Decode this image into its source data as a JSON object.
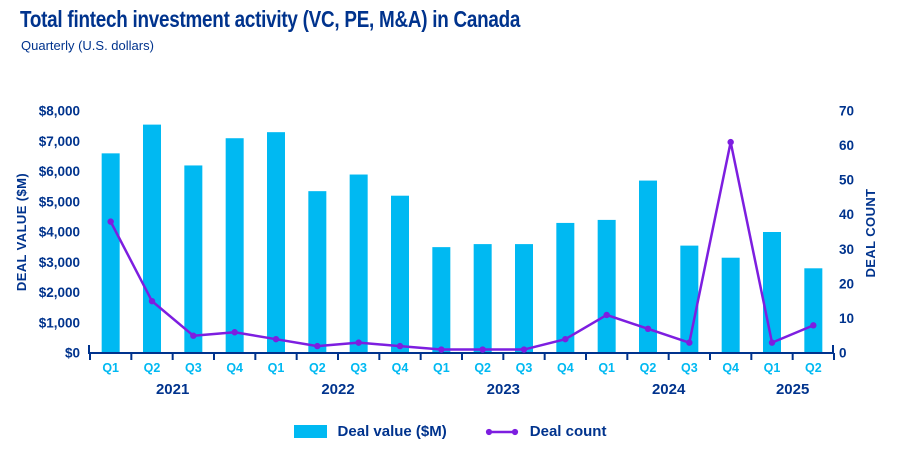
{
  "header": {
    "title": "Total fintech investment activity (VC, PE, M&A) in Canada",
    "subtitle": "Quarterly (U.S. dollars)"
  },
  "colors": {
    "navy": "#00338D",
    "cyan": "#00B9F2",
    "purple": "#7D1EE0"
  },
  "chart_data": {
    "type": "bar",
    "title": "Total fintech investment activity (VC, PE, M&A) in Canada",
    "subtitle": "Quarterly (U.S. dollars)",
    "categories": [
      "Q1",
      "Q2",
      "Q3",
      "Q4",
      "Q1",
      "Q2",
      "Q3",
      "Q4",
      "Q1",
      "Q2",
      "Q3",
      "Q4",
      "Q1",
      "Q2",
      "Q3",
      "Q4",
      "Q1",
      "Q2"
    ],
    "year_groups": [
      {
        "label": "2021",
        "start": 0,
        "count": 4
      },
      {
        "label": "2022",
        "start": 4,
        "count": 4
      },
      {
        "label": "2023",
        "start": 8,
        "count": 4
      },
      {
        "label": "2024",
        "start": 12,
        "count": 4
      },
      {
        "label": "2025",
        "start": 16,
        "count": 2
      }
    ],
    "series": [
      {
        "name": "Deal value ($M)",
        "type": "bar",
        "axis": "left",
        "values": [
          6600,
          7550,
          6200,
          7100,
          7300,
          5350,
          5900,
          5200,
          3500,
          3600,
          3600,
          4300,
          4400,
          5700,
          3550,
          3150,
          4000,
          2800
        ]
      },
      {
        "name": "Deal count",
        "type": "line",
        "axis": "right",
        "values": [
          38,
          15,
          5,
          6,
          4,
          2,
          3,
          2,
          1,
          1,
          1,
          4,
          11,
          7,
          3,
          61,
          3,
          8
        ]
      }
    ],
    "left_axis": {
      "title": "DEAL VALUE ($M)",
      "min": 0,
      "max": 8000,
      "tick_labels": [
        "$0",
        "$1,000",
        "$2,000",
        "$3,000",
        "$4,000",
        "$5,000",
        "$6,000",
        "$7,000",
        "$8,000"
      ]
    },
    "right_axis": {
      "title": "DEAL COUNT",
      "min": 0,
      "max": 70,
      "tick_labels": [
        "0",
        "10",
        "20",
        "30",
        "40",
        "50",
        "60",
        "70"
      ]
    },
    "legend": [
      {
        "label": "Deal value ($M)",
        "marker": "bar"
      },
      {
        "label": "Deal count",
        "marker": "line"
      }
    ],
    "grid": false,
    "legend_position": "bottom-center"
  }
}
